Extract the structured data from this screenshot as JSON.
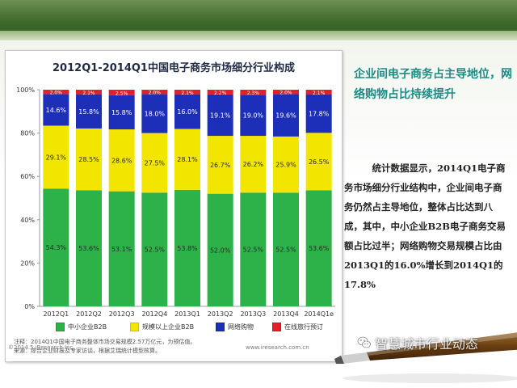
{
  "chart_data": {
    "type": "bar",
    "stacked": true,
    "title": "2012Q1-2014Q1中国电子商务市场细分行业构成",
    "categories": [
      "2012Q1",
      "2012Q2",
      "2012Q3",
      "2012Q4",
      "2013Q1",
      "2013Q2",
      "2013Q3",
      "2013Q4",
      "2014Q1e"
    ],
    "ylim": [
      0,
      100
    ],
    "yticks": [
      "0%",
      "20%",
      "40%",
      "60%",
      "80%",
      "100%"
    ],
    "series": [
      {
        "name": "中小企业B2B",
        "color": "#2db24a",
        "values": [
          54.3,
          53.6,
          53.1,
          52.5,
          53.8,
          52.0,
          52.5,
          52.5,
          53.6
        ],
        "labels": [
          "54.3%",
          "53.6%",
          "53.1%",
          "52.5%",
          "53.8%",
          "52.0%",
          "52.5%",
          "52.5%",
          "53.6%"
        ]
      },
      {
        "name": "规模以上企业B2B",
        "color": "#f2e600",
        "values": [
          29.1,
          28.5,
          28.6,
          27.5,
          28.1,
          26.7,
          26.2,
          25.9,
          26.5
        ],
        "labels": [
          "29.1%",
          "28.5%",
          "28.6%",
          "27.5%",
          "28.1%",
          "26.7%",
          "26.2%",
          "25.9%",
          "26.5%"
        ]
      },
      {
        "name": "网络购物",
        "color": "#1d2fb8",
        "values": [
          14.6,
          15.8,
          15.8,
          18.0,
          16.0,
          19.1,
          19.0,
          19.6,
          17.8
        ],
        "labels": [
          "14.6%",
          "15.8%",
          "15.8%",
          "18.0%",
          "16.0%",
          "19.1%",
          "19.0%",
          "19.6%",
          "17.8%"
        ]
      },
      {
        "name": "在线旅行预订",
        "color": "#e0202a",
        "values": [
          2.0,
          2.1,
          2.5,
          2.0,
          2.1,
          2.2,
          2.3,
          2.0,
          2.1
        ],
        "labels": [
          "2.0%",
          "2.1%",
          "2.5%",
          "2.0%",
          "2.1%",
          "2.2%",
          "2.3%",
          "2.0%",
          "2.1%"
        ]
      }
    ],
    "legend_position": "bottom",
    "grid": false
  },
  "notes": {
    "line1": "注释：2014Q1中国电子商务整体市场交易规模2.57万亿元，为预估值。",
    "line2": "来源：综合企业财报及专家访谈，根据艾瑞统计模型核算。"
  },
  "footer": {
    "copyright": "©2014.5 iResearch Inc.",
    "site": "www.iresearch.com.cn"
  },
  "side": {
    "heading": "企业间电子商务占主导地位，网络购物占比持续提升",
    "body": "统计数据显示，2014Q1电子商务市场细分行业结构中，企业间电子商务仍然占主导地位，整体占比达到八成，其中，中小企业B2B电子商务交易额占比过半；网络购物交易规模占比由2013Q1的16.0%增长到2014Q1的17.8%"
  },
  "watermark": {
    "text": "智慧城市行业动态",
    "icon": "wechat-icon"
  }
}
